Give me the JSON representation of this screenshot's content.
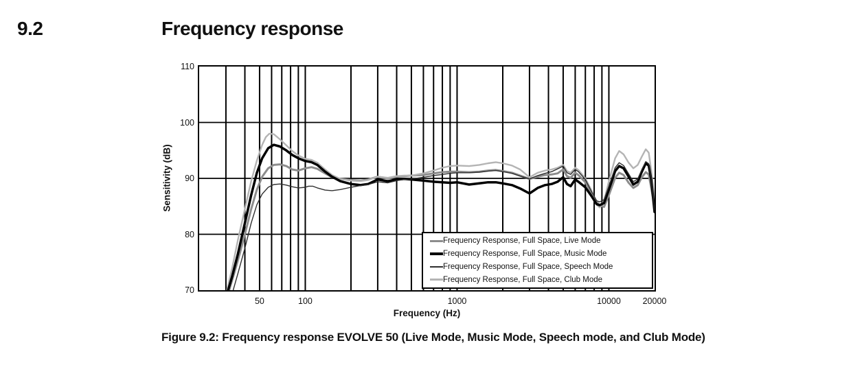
{
  "heading": {
    "section_number": "9.2",
    "title": "Frequency response"
  },
  "caption": "Figure 9.2: Frequency response EVOLVE 50 (Live Mode, Music Mode, Speech mode, and Club Mode)",
  "chart_data": {
    "type": "line",
    "xlabel": "Frequency (Hz)",
    "ylabel": "Sensitivity (dB)",
    "x_scale": "log",
    "xlim": [
      20,
      20000
    ],
    "ylim": [
      70,
      110
    ],
    "grid": true,
    "grid_color": "#000000",
    "legend_position": "lower right",
    "y_ticks": [
      {
        "value": 110,
        "label": "110"
      },
      {
        "value": 100,
        "label": "100"
      },
      {
        "value": 90,
        "label": "90"
      },
      {
        "value": 80,
        "label": "80"
      },
      {
        "value": 70,
        "label": "70"
      }
    ],
    "x_ticks": [
      {
        "value": 50,
        "label": "50"
      },
      {
        "value": 100,
        "label": "100"
      },
      {
        "value": 1000,
        "label": "1000"
      },
      {
        "value": 10000,
        "label": "10000"
      },
      {
        "value": 20000,
        "label": "20000"
      }
    ],
    "x_gridlines": [
      30,
      40,
      50,
      60,
      70,
      80,
      90,
      100,
      200,
      300,
      400,
      500,
      600,
      700,
      800,
      900,
      1000,
      2000,
      3000,
      4000,
      5000,
      6000,
      7000,
      8000,
      9000,
      10000
    ],
    "y_gridlines": [
      80,
      90,
      100
    ],
    "series": [
      {
        "name": "Frequency Response, Full Space, Live Mode",
        "mode": "live-mode",
        "color": "#8c8c8c",
        "width": 3.0,
        "z": 1,
        "points": [
          [
            31.5,
            70
          ],
          [
            34,
            73
          ],
          [
            37,
            76.5
          ],
          [
            40,
            80
          ],
          [
            44,
            84.5
          ],
          [
            48,
            88
          ],
          [
            52,
            90.3
          ],
          [
            57,
            91.8
          ],
          [
            62,
            92.4
          ],
          [
            68,
            92.5
          ],
          [
            75,
            92.2
          ],
          [
            82,
            91.6
          ],
          [
            90,
            91.4
          ],
          [
            100,
            91.8
          ],
          [
            110,
            92
          ],
          [
            120,
            91.7
          ],
          [
            135,
            90.9
          ],
          [
            150,
            90.2
          ],
          [
            170,
            89.9
          ],
          [
            200,
            89.7
          ],
          [
            230,
            89.6
          ],
          [
            260,
            89.8
          ],
          [
            300,
            90.3
          ],
          [
            350,
            90
          ],
          [
            400,
            90.3
          ],
          [
            450,
            90.4
          ],
          [
            500,
            90.5
          ],
          [
            600,
            90.6
          ],
          [
            700,
            90.9
          ],
          [
            800,
            91.1
          ],
          [
            900,
            91.2
          ],
          [
            1000,
            91.2
          ],
          [
            1200,
            91.1
          ],
          [
            1400,
            91.2
          ],
          [
            1600,
            91.4
          ],
          [
            1800,
            91.5
          ],
          [
            2000,
            91.3
          ],
          [
            2300,
            91
          ],
          [
            2600,
            90.5
          ],
          [
            3000,
            89.9
          ],
          [
            3400,
            90.3
          ],
          [
            3800,
            90.6
          ],
          [
            4200,
            90.7
          ],
          [
            4600,
            90.9
          ],
          [
            5000,
            91.6
          ],
          [
            5300,
            90.4
          ],
          [
            5600,
            90.1
          ],
          [
            6000,
            91
          ],
          [
            6300,
            90.6
          ],
          [
            7000,
            89.3
          ],
          [
            7700,
            87.4
          ],
          [
            8300,
            85.8
          ],
          [
            8700,
            85.2
          ],
          [
            9300,
            84.9
          ],
          [
            10000,
            87
          ],
          [
            11000,
            90.1
          ],
          [
            11700,
            91
          ],
          [
            12500,
            90.6
          ],
          [
            13500,
            89.2
          ],
          [
            14500,
            88.3
          ],
          [
            15500,
            88.8
          ],
          [
            16500,
            90.2
          ],
          [
            17500,
            91.1
          ],
          [
            18300,
            90.7
          ],
          [
            19000,
            88.3
          ],
          [
            20000,
            85
          ]
        ]
      },
      {
        "name": "Frequency Response, Full Space, Music Mode",
        "mode": "music-mode",
        "color": "#000000",
        "width": 3.5,
        "z": 3,
        "points": [
          [
            31,
            70
          ],
          [
            33,
            72.5
          ],
          [
            36,
            76.5
          ],
          [
            40,
            82
          ],
          [
            44,
            87
          ],
          [
            48,
            91
          ],
          [
            52,
            93.6
          ],
          [
            57,
            95.4
          ],
          [
            62,
            96
          ],
          [
            68,
            95.7
          ],
          [
            75,
            95
          ],
          [
            82,
            94.2
          ],
          [
            90,
            93.6
          ],
          [
            100,
            93.1
          ],
          [
            110,
            92.9
          ],
          [
            120,
            92.4
          ],
          [
            135,
            91.2
          ],
          [
            150,
            90.3
          ],
          [
            170,
            89.5
          ],
          [
            200,
            89
          ],
          [
            230,
            88.8
          ],
          [
            260,
            89
          ],
          [
            300,
            89.8
          ],
          [
            350,
            89.5
          ],
          [
            400,
            89.8
          ],
          [
            450,
            89.9
          ],
          [
            500,
            89.8
          ],
          [
            600,
            89.6
          ],
          [
            700,
            89.4
          ],
          [
            800,
            89.3
          ],
          [
            900,
            89.2
          ],
          [
            1000,
            89.3
          ],
          [
            1200,
            88.9
          ],
          [
            1400,
            89.1
          ],
          [
            1600,
            89.3
          ],
          [
            1800,
            89.3
          ],
          [
            2000,
            89.1
          ],
          [
            2300,
            88.8
          ],
          [
            2600,
            88.2
          ],
          [
            3000,
            87.3
          ],
          [
            3400,
            88.3
          ],
          [
            3800,
            88.8
          ],
          [
            4200,
            89
          ],
          [
            4600,
            89.4
          ],
          [
            5000,
            90.2
          ],
          [
            5300,
            89
          ],
          [
            5600,
            88.6
          ],
          [
            6000,
            89.8
          ],
          [
            6300,
            89.4
          ],
          [
            7000,
            88.4
          ],
          [
            7700,
            86.8
          ],
          [
            8300,
            85.4
          ],
          [
            8700,
            85.2
          ],
          [
            9300,
            85.6
          ],
          [
            10000,
            88
          ],
          [
            11000,
            91.3
          ],
          [
            11700,
            92.2
          ],
          [
            12500,
            91.8
          ],
          [
            13500,
            90.3
          ],
          [
            14500,
            88.9
          ],
          [
            15500,
            89.4
          ],
          [
            16500,
            91.2
          ],
          [
            17500,
            92.7
          ],
          [
            18300,
            92.3
          ],
          [
            19000,
            89.8
          ],
          [
            20000,
            84
          ]
        ]
      },
      {
        "name": "Frequency Response, Full Space, Speech Mode",
        "mode": "speech-mode",
        "color": "#2e2e2e",
        "width": 1.4,
        "z": 4,
        "points": [
          [
            33.5,
            70
          ],
          [
            36,
            73
          ],
          [
            40,
            77.5
          ],
          [
            44,
            82
          ],
          [
            48,
            85.3
          ],
          [
            52,
            87.2
          ],
          [
            57,
            88.4
          ],
          [
            62,
            88.9
          ],
          [
            68,
            89
          ],
          [
            75,
            88.8
          ],
          [
            82,
            88.5
          ],
          [
            90,
            88.3
          ],
          [
            100,
            88.4
          ],
          [
            105,
            88.6
          ],
          [
            112,
            88.6
          ],
          [
            120,
            88.3
          ],
          [
            135,
            87.9
          ],
          [
            150,
            87.8
          ],
          [
            170,
            88
          ],
          [
            200,
            88.4
          ],
          [
            230,
            88.7
          ],
          [
            260,
            88.9
          ],
          [
            300,
            89.4
          ],
          [
            350,
            89.2
          ],
          [
            400,
            89.6
          ],
          [
            450,
            89.8
          ],
          [
            500,
            89.9
          ],
          [
            600,
            90.2
          ],
          [
            700,
            90.5
          ],
          [
            800,
            90.7
          ],
          [
            900,
            90.9
          ],
          [
            1000,
            91
          ],
          [
            1200,
            91
          ],
          [
            1400,
            91.1
          ],
          [
            1600,
            91.3
          ],
          [
            1800,
            91.4
          ],
          [
            2000,
            91.2
          ],
          [
            2300,
            90.9
          ],
          [
            2600,
            90.4
          ],
          [
            3000,
            89.9
          ],
          [
            3400,
            90.5
          ],
          [
            3800,
            90.9
          ],
          [
            4200,
            91.2
          ],
          [
            4600,
            91.7
          ],
          [
            5000,
            92.2
          ],
          [
            5300,
            91
          ],
          [
            5600,
            90.7
          ],
          [
            6000,
            91.6
          ],
          [
            6300,
            91.2
          ],
          [
            7000,
            89.8
          ],
          [
            7700,
            87.6
          ],
          [
            8300,
            86
          ],
          [
            8700,
            85.8
          ],
          [
            9300,
            86.2
          ],
          [
            10000,
            88.6
          ],
          [
            11000,
            91.9
          ],
          [
            11700,
            92.8
          ],
          [
            12500,
            92.3
          ],
          [
            13500,
            90.8
          ],
          [
            14500,
            89.4
          ],
          [
            15500,
            89.9
          ],
          [
            16500,
            91.6
          ],
          [
            17500,
            93
          ],
          [
            18300,
            92.6
          ],
          [
            19000,
            90
          ],
          [
            20000,
            84.3
          ]
        ]
      },
      {
        "name": "Frequency Response, Full Space, Club Mode",
        "mode": "club-mode",
        "color": "#b4b4b4",
        "width": 2.4,
        "z": 2,
        "points": [
          [
            30.5,
            70
          ],
          [
            33,
            74
          ],
          [
            36,
            79
          ],
          [
            40,
            84.5
          ],
          [
            44,
            89.5
          ],
          [
            48,
            93.2
          ],
          [
            52,
            96
          ],
          [
            55,
            97.4
          ],
          [
            58,
            98
          ],
          [
            62,
            97.9
          ],
          [
            68,
            97
          ],
          [
            75,
            95.9
          ],
          [
            82,
            94.9
          ],
          [
            90,
            94.1
          ],
          [
            100,
            93.5
          ],
          [
            110,
            93.3
          ],
          [
            120,
            92.8
          ],
          [
            135,
            91.6
          ],
          [
            150,
            90.6
          ],
          [
            170,
            89.9
          ],
          [
            200,
            89.6
          ],
          [
            230,
            89.5
          ],
          [
            260,
            89.7
          ],
          [
            300,
            90.3
          ],
          [
            350,
            90.1
          ],
          [
            400,
            90.4
          ],
          [
            450,
            90.5
          ],
          [
            500,
            90.5
          ],
          [
            600,
            90.9
          ],
          [
            700,
            91.4
          ],
          [
            800,
            91.9
          ],
          [
            900,
            92.2
          ],
          [
            1000,
            92.3
          ],
          [
            1200,
            92.2
          ],
          [
            1400,
            92.4
          ],
          [
            1600,
            92.7
          ],
          [
            1800,
            92.9
          ],
          [
            2000,
            92.7
          ],
          [
            2300,
            92.3
          ],
          [
            2600,
            91.6
          ],
          [
            3000,
            90.2
          ],
          [
            3400,
            91
          ],
          [
            3800,
            91.4
          ],
          [
            4200,
            91.6
          ],
          [
            4600,
            91.9
          ],
          [
            5000,
            92.4
          ],
          [
            5300,
            91.3
          ],
          [
            5600,
            91
          ],
          [
            6000,
            91.9
          ],
          [
            6300,
            91.5
          ],
          [
            7000,
            90
          ],
          [
            7700,
            87.8
          ],
          [
            8300,
            85.3
          ],
          [
            8700,
            84.8
          ],
          [
            9300,
            86
          ],
          [
            10000,
            89.5
          ],
          [
            11000,
            93.6
          ],
          [
            11700,
            94.9
          ],
          [
            12500,
            94.3
          ],
          [
            13500,
            92.8
          ],
          [
            14500,
            91.8
          ],
          [
            15500,
            92.4
          ],
          [
            16500,
            93.9
          ],
          [
            17500,
            95.2
          ],
          [
            18300,
            94.6
          ],
          [
            19000,
            91.5
          ],
          [
            20000,
            86
          ]
        ]
      }
    ]
  }
}
